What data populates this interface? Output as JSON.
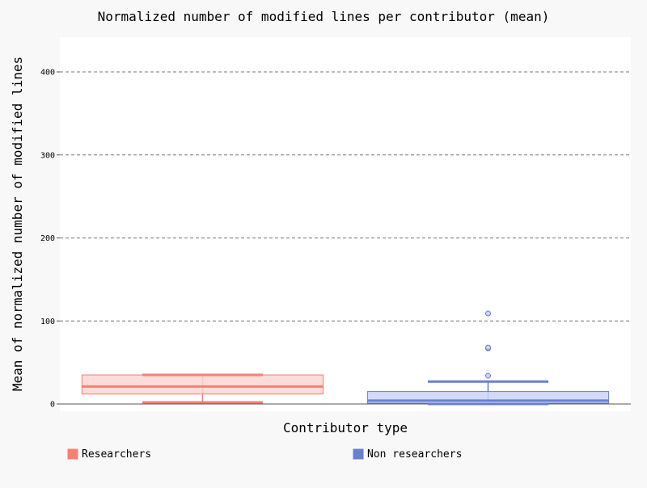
{
  "chart_data": {
    "type": "box",
    "title": "Normalized number of modified lines per contributor (mean)",
    "xlabel": "Contributor type",
    "ylabel": "Mean of normalized number of modified lines",
    "ylim": [
      -8,
      444
    ],
    "yticks": [
      0,
      100,
      200,
      300,
      400
    ],
    "grid": true,
    "legend_position": "bottom",
    "series": [
      {
        "name": "Researchers",
        "color": "#f87f72",
        "fill": "#fcd6d4",
        "whisker_low": 2,
        "q1": 12,
        "median": 21,
        "q3": 35,
        "whisker_high": 35,
        "outliers": []
      },
      {
        "name": "Non researchers",
        "color": "#6a7fd0",
        "fill": "#cdd4f1",
        "whisker_low": 0,
        "q1": 1,
        "median": 4,
        "q3": 15,
        "whisker_high": 27,
        "outliers": [
          34,
          67,
          68,
          109
        ]
      }
    ]
  }
}
